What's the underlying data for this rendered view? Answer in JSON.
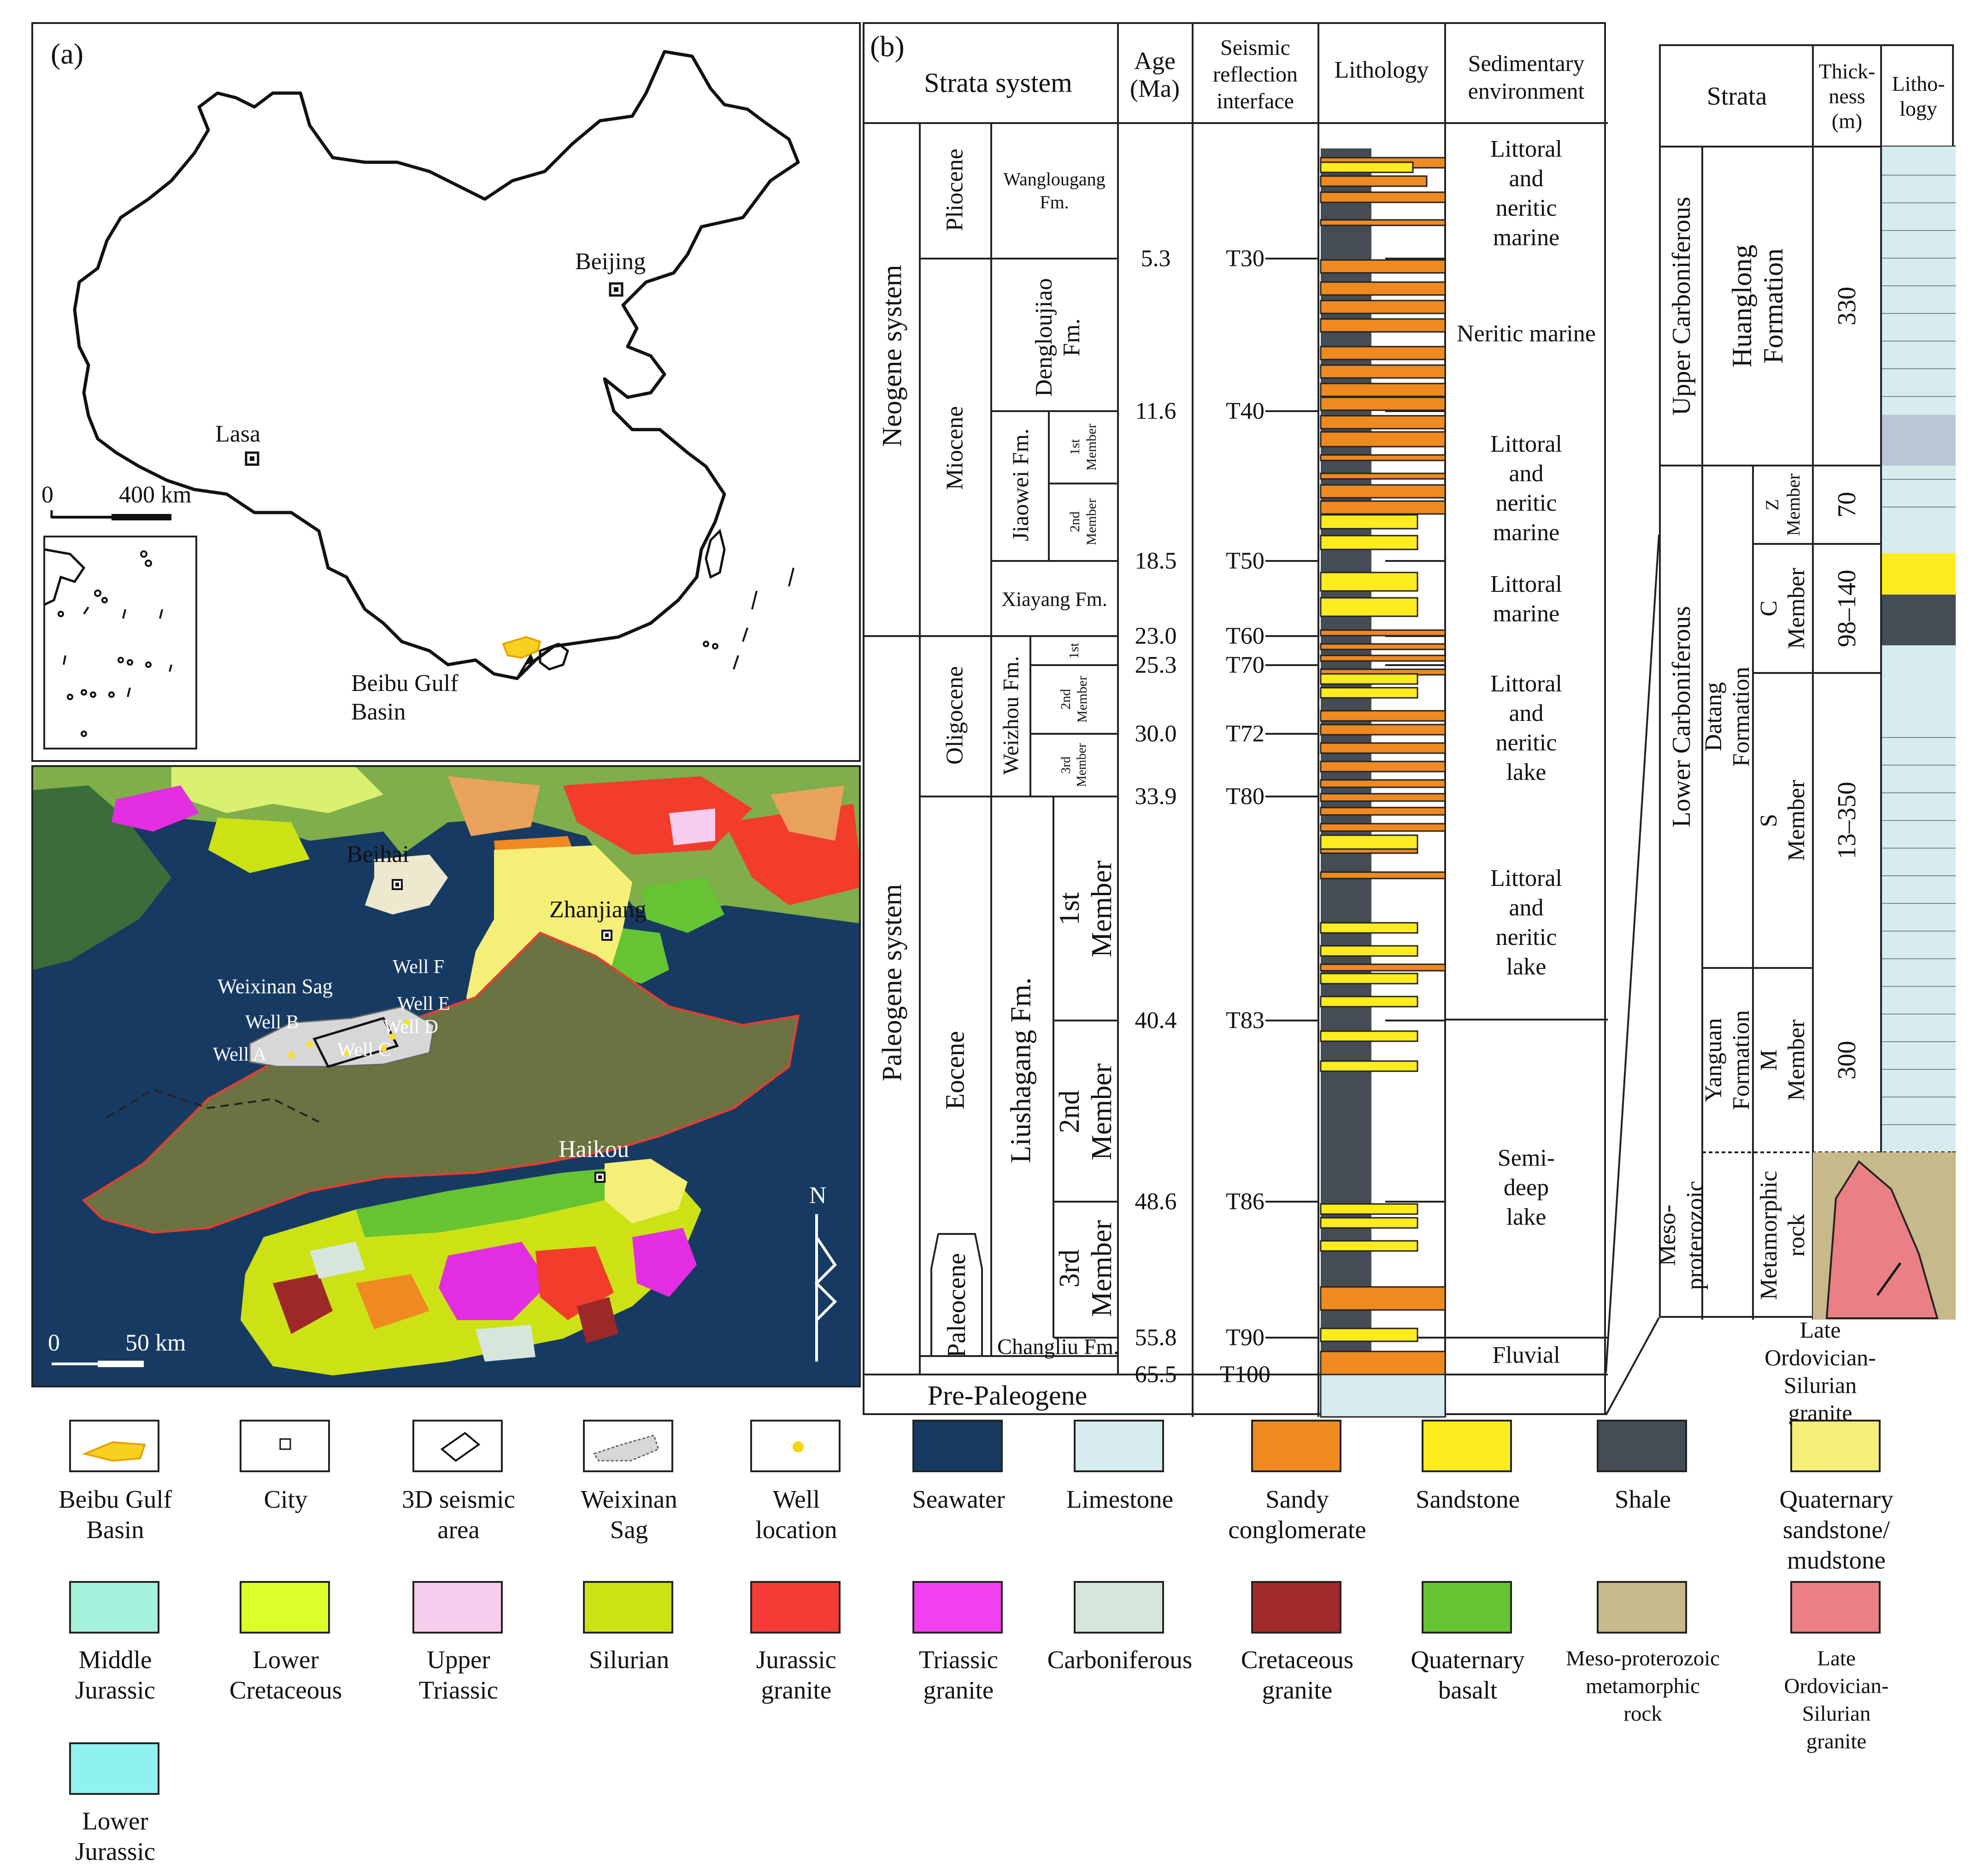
{
  "panel_a": {
    "label": "(a)",
    "cities": {
      "beijing": "Beijing",
      "lasa": "Lasa"
    },
    "basin_label": "Beibu Gulf\nBasin",
    "scale_0": "0",
    "scale_400": "400 km"
  },
  "map": {
    "cities": {
      "beihai": "Beihai",
      "zhanjiang": "Zhanjiang",
      "haikou": "Haikou"
    },
    "sag": "Weixinan Sag",
    "wells": [
      "Well A",
      "Well B",
      "Well C",
      "Well D",
      "Well E",
      "Well F"
    ],
    "scale_0": "0",
    "scale_50": "50 km",
    "north": "N",
    "colors": {
      "sea": "#173a63",
      "basin": "#6a7341",
      "sandstone_mud": "#f5ef78",
      "basalt": "#6cc13b",
      "jurassic_granite": "#f23c2c",
      "triassic_granite": "#e22ee0",
      "cretaceous_granite": "#9c2828"
    }
  },
  "panel_b": {
    "label": "(b)",
    "headers": {
      "strata": "Strata system",
      "age": "Age\n(Ma)",
      "seismic": "Seismic\nreflection\ninterface",
      "lithology": "Lithology",
      "environment": "Sedimentary\nenvironment"
    },
    "systems": [
      "Neogene system",
      "Paleogene system",
      "Pre-Paleogene"
    ],
    "series": [
      "Pliocene",
      "Miocene",
      "Oligocene",
      "Eocene",
      "Paleocene"
    ],
    "formations": [
      "Wanglougang\nFm.",
      "Dengloujiao\nFm.",
      "Jiaowei Fm.",
      "Xiayang Fm.",
      "Weizhou Fm.",
      "Liushagang Fm.",
      "Changliu Fm."
    ],
    "members": [
      "1st\nMember",
      "2nd\nMember",
      "1st",
      "2nd\nMember",
      "3rd\nMember",
      "1st\nMember",
      "2nd\nMember",
      "3rd\nMember"
    ],
    "ages": [
      "5.3",
      "11.6",
      "18.5",
      "23.0",
      "25.3",
      "30.0",
      "33.9",
      "40.4",
      "48.6",
      "55.8",
      "65.5"
    ],
    "interfaces": [
      "T30",
      "T40",
      "T50",
      "T60",
      "T70",
      "T72",
      "T80",
      "T83",
      "T86",
      "T90",
      "T100"
    ],
    "environments": [
      "Littoral and\nneritic marine",
      "Neritic marine",
      "Littoral and\nneritic marine",
      "Littoral\nmarine",
      "Littoral and\nneritic lake",
      "Littoral and\nneritic lake",
      "Semi-deep\nlake",
      "Fluvial"
    ]
  },
  "panel_c": {
    "headers": {
      "strata": "Strata",
      "thickness": "Thick-\nness\n(m)",
      "lithology": "Litho-\nlogy"
    },
    "systems": [
      "Upper Carboniferous",
      "Lower Carboniferous",
      "Meso-\nproterozoic"
    ],
    "formations": [
      "Huanglong\nFormation",
      "Datang\nFormation",
      "Yanguan\nFormation",
      "Metamorphic\nrock"
    ],
    "members": [
      "Z\nMember",
      "C\nMember",
      "S\nMember",
      "M\nMember"
    ],
    "thickness": [
      "330",
      "70",
      "98–140",
      "13–350",
      "300"
    ],
    "granite_label": "Late Ordovician-\nSilurian\ngranite"
  },
  "legend": {
    "row1": [
      "Beibu Gulf\nBasin",
      "City",
      "3D seismic\narea",
      "Weixinan\nSag",
      "Well\nlocation",
      "Seawater",
      "Limestone",
      "Sandy\nconglomerate",
      "Sandstone",
      "Shale",
      "Quaternary\nsandstone/\nmudstone"
    ],
    "row2": [
      "Middle\nJurassic",
      "Lower\nCretaceous",
      "Upper\nTriassic",
      "Silurian",
      "Jurassic\ngranite",
      "Triassic\ngranite",
      "Carboniferous",
      "Cretaceous\ngranite",
      "Quaternary\nbasalt",
      "Meso-proterozoic\nmetamorphic\nrock",
      "Late Ordovician-\nSilurian\ngranite"
    ],
    "row3": [
      "Lower\nJurassic"
    ],
    "colors": {
      "middle_jurassic": "#a5f2dc",
      "lower_cretaceous": "#dcff2a",
      "upper_triassic": "#f6cdec",
      "silurian": "#cce214",
      "jurassic_granite": "#f53b36",
      "triassic_granite": "#f23ff0",
      "carboniferous": "#d7e6dc",
      "cretaceous_granite": "#a32a2a",
      "quaternary_basalt": "#66c432",
      "lower_jurassic": "#8ff2f0",
      "seawater": "#173a63",
      "shale": "#454c54",
      "sandstone": "#ffec1f",
      "sandy_conglomerate": "#ef8a21",
      "limestone": "#d6ecee"
    }
  }
}
